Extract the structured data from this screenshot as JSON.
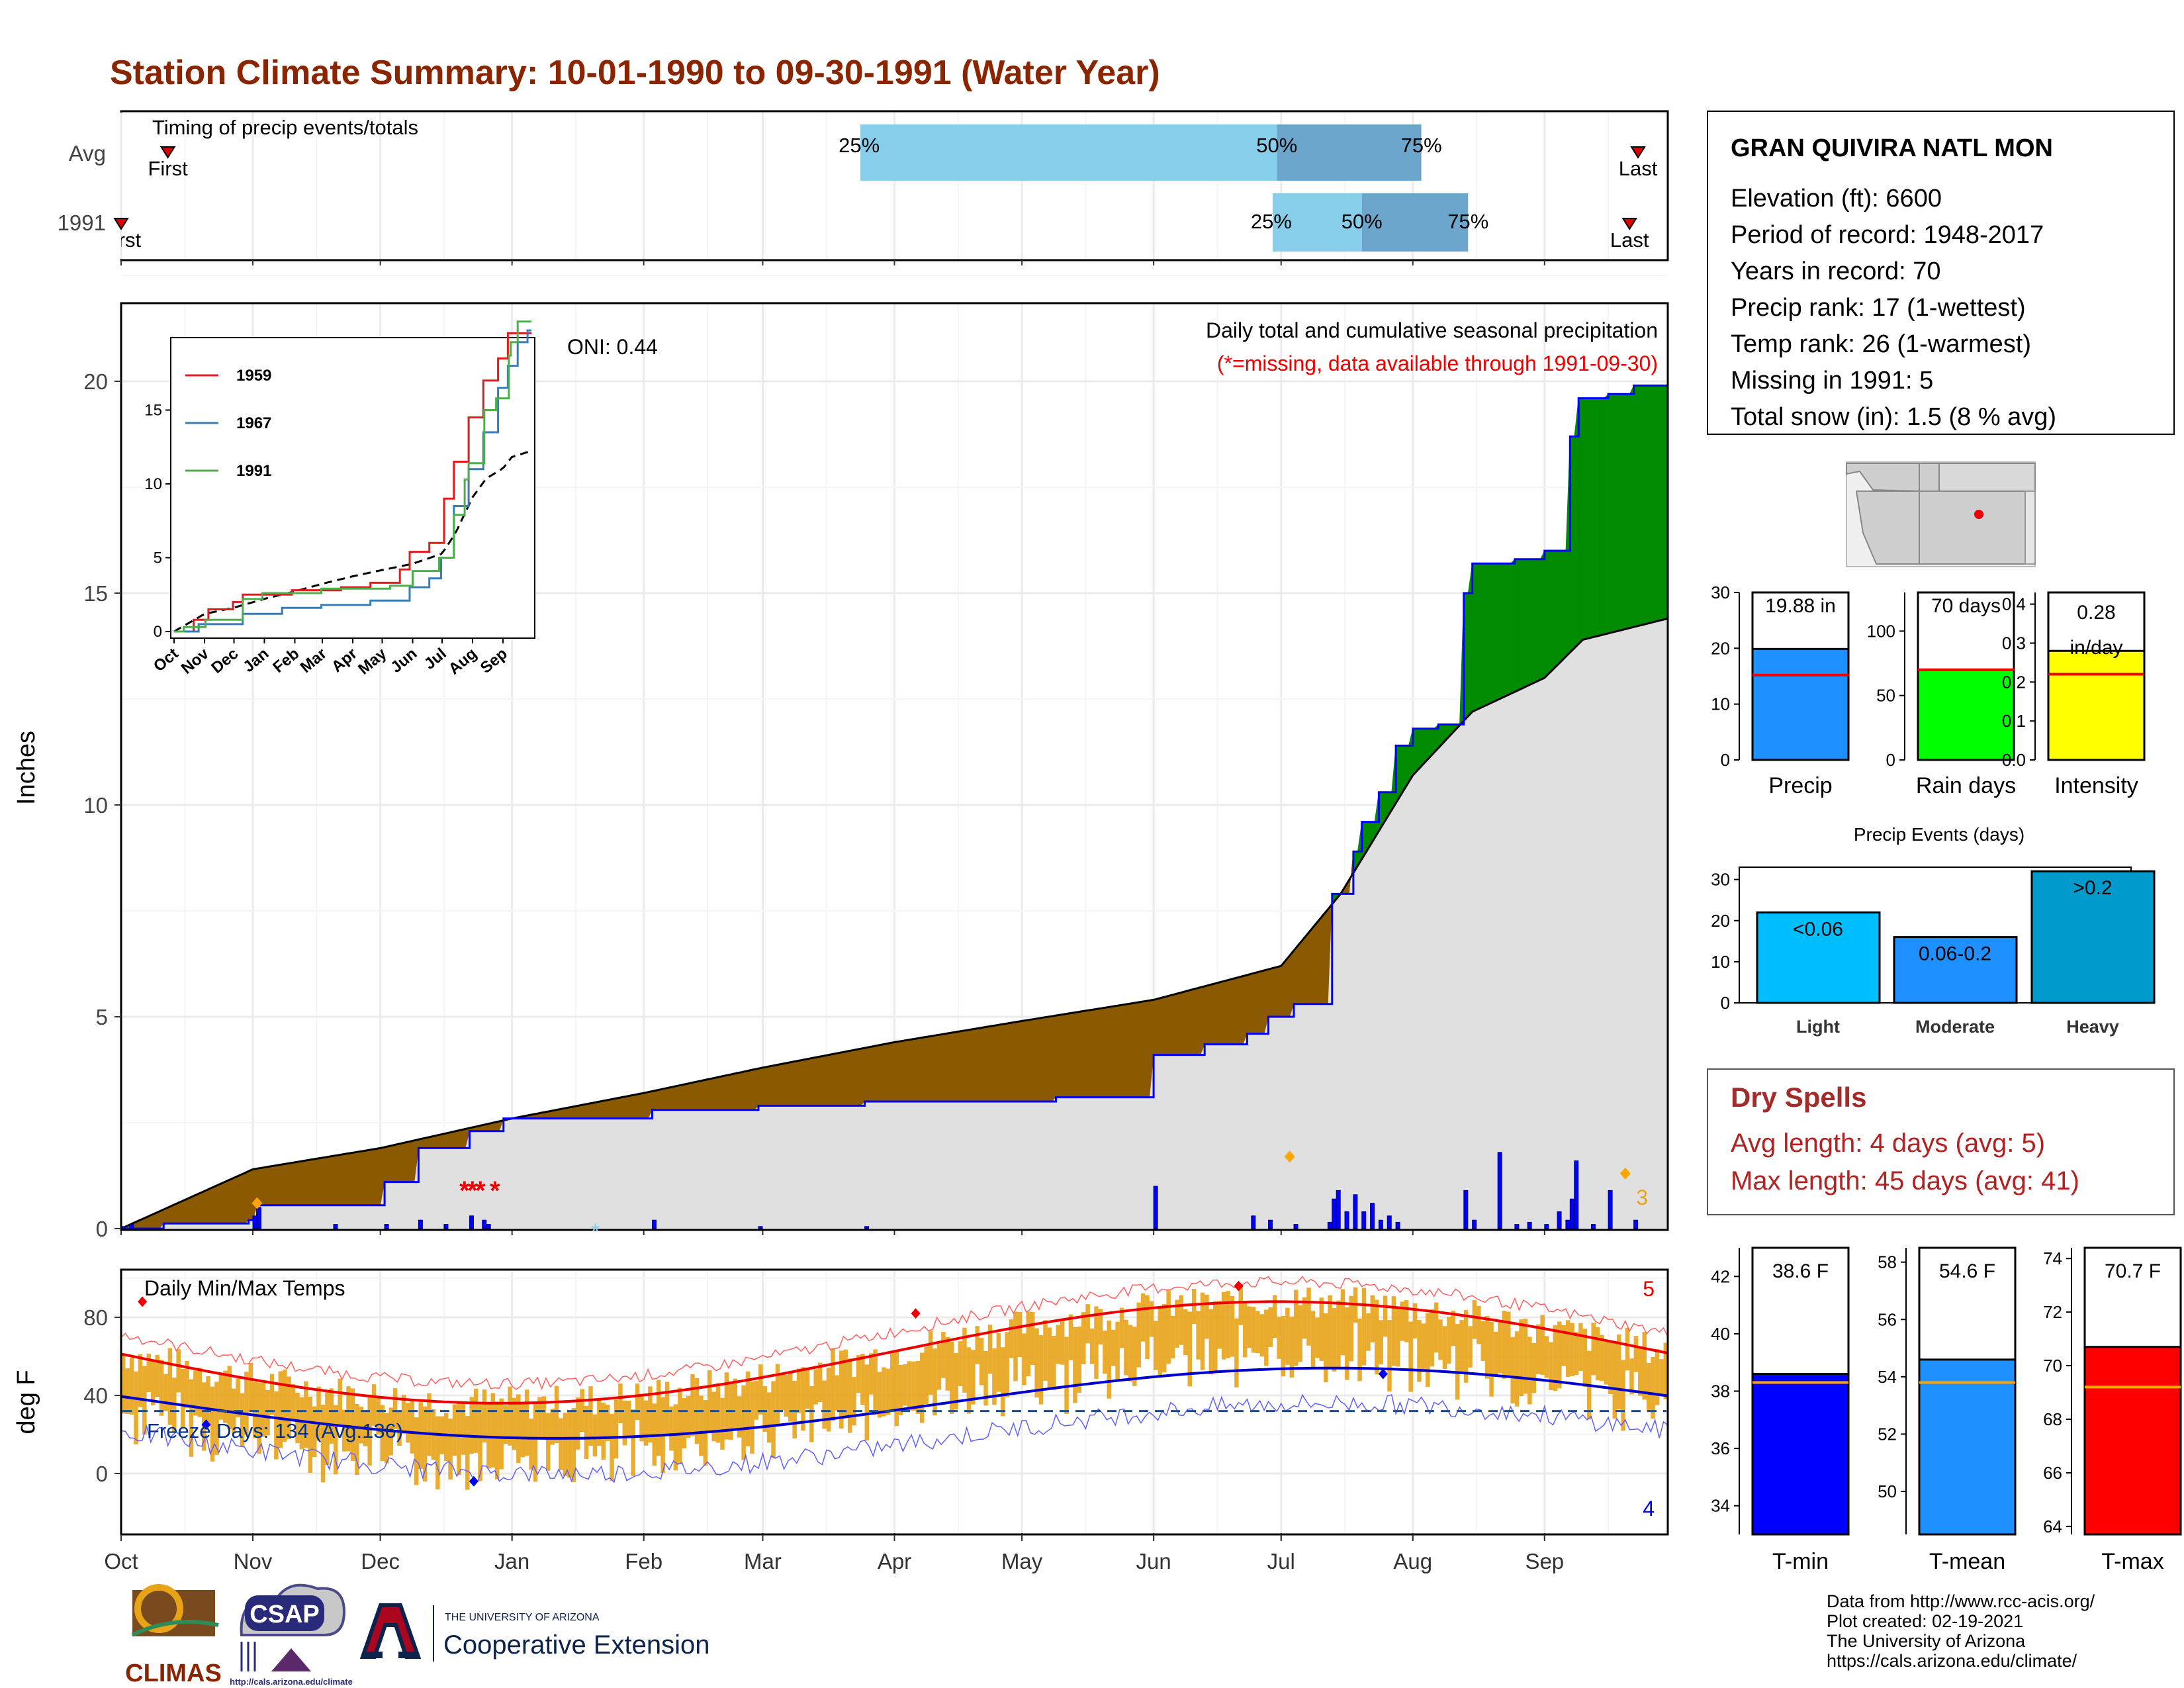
{
  "title": "Station Climate Summary: 10-01-1990 to 09-30-1991 (Water Year)",
  "months": [
    "Oct",
    "Nov",
    "Dec",
    "Jan",
    "Feb",
    "Mar",
    "Apr",
    "May",
    "Jun",
    "Jul",
    "Aug",
    "Sep"
  ],
  "timing": {
    "title": "Timing of precip events/totals",
    "rows": [
      {
        "label": "Avg",
        "first_label": "First",
        "last_label": "Last",
        "first_day": 11,
        "last_day": 357,
        "p25_day": 174,
        "p50_day": 272,
        "p75_day": 306,
        "p25_label": "25%",
        "p50_label": "50%",
        "p75_label": "75%"
      },
      {
        "label": "1991",
        "first_label": "First",
        "last_label": "Last",
        "first_day": 0,
        "last_day": 355,
        "p25_day": 271,
        "p50_day": 292,
        "p75_day": 317,
        "p25_label": "25%",
        "p50_label": "50%",
        "p75_label": "75%"
      }
    ]
  },
  "station": {
    "name": "GRAN QUIVIRA NATL MON",
    "lines": [
      "Elevation (ft): 6600",
      "Period of record: 1948-2017",
      "Years in record: 70",
      "Precip rank: 17 (1-wettest)",
      "Temp rank: 26 (1-warmest)",
      "Missing in 1991: 5",
      "Total snow (in): 1.5 (8 % avg)"
    ]
  },
  "precip_panel": {
    "ylabel": "Inches",
    "note1": "Daily total and cumulative seasonal precipitation",
    "note2": "(*=missing, data available through 1991-09-30)",
    "oni": "ONI: 0.44",
    "corner_count": "3",
    "yticks": [
      "0",
      "5",
      "10",
      "15",
      "20"
    ]
  },
  "chart_data": {
    "type": "area",
    "x": [
      "10-01",
      "11-01",
      "12-01",
      "01-01",
      "02-01",
      "03-01",
      "04-01",
      "05-01",
      "06-01",
      "07-01",
      "07-15",
      "08-01",
      "08-15",
      "09-01",
      "09-10",
      "09-30"
    ],
    "series": [
      {
        "name": "1991",
        "values": [
          0.0,
          0.5,
          1.9,
          2.6,
          2.8,
          3.0,
          3.0,
          3.1,
          4.5,
          5.5,
          8.5,
          11.8,
          15.7,
          16.0,
          19.7,
          19.9
        ]
      },
      {
        "name": "Avg",
        "values": [
          0.0,
          1.4,
          1.9,
          2.6,
          3.2,
          3.8,
          4.4,
          4.9,
          5.4,
          6.2,
          7.9,
          10.7,
          12.2,
          13.0,
          13.9,
          14.4
        ]
      }
    ],
    "ylim": [
      0,
      22
    ]
  },
  "inset": {
    "legend": [
      "1959",
      "1967",
      "1991"
    ],
    "yticks": [
      "0",
      "5",
      "10",
      "15"
    ],
    "xticks": [
      "Oct",
      "Nov",
      "Dec",
      "Jan",
      "Feb",
      "Mar",
      "Apr",
      "May",
      "Jun",
      "Jul",
      "Aug",
      "Sep"
    ]
  },
  "bars": {
    "precip": {
      "label": "Precip",
      "value_text": "19.88 in",
      "value": 19.88,
      "avg": 15.2,
      "yticks": [
        "0",
        "10",
        "20",
        "30"
      ],
      "color": "#1e90ff"
    },
    "rain": {
      "label": "Rain days",
      "value_text": "70 days",
      "value": 70,
      "avg": 70,
      "yticks": [
        "0",
        "50",
        "100"
      ],
      "color": "#00ff00"
    },
    "intensity": {
      "label": "Intensity",
      "value_text": "0.28",
      "value_unit": "in/day",
      "value": 0.28,
      "avg": 0.22,
      "yticks": [
        "0.0",
        "0.1",
        "0.2",
        "0.3",
        "0.4"
      ],
      "color": "#ffff00"
    }
  },
  "events": {
    "title": "Precip Events (days)",
    "cats": [
      "Light",
      "Moderate",
      "Heavy"
    ],
    "labels": [
      "<0.06",
      "0.06-0.2",
      ">0.2"
    ],
    "values": [
      22,
      16,
      32
    ],
    "yticks": [
      "0",
      "10",
      "20",
      "30"
    ]
  },
  "dry": {
    "title": "Dry Spells",
    "line1": "Avg length: 4 days (avg: 5)",
    "line2": "Max length: 45 days (avg: 41)"
  },
  "temp_panel": {
    "title": "Daily Min/Max Temps",
    "ylabel": "deg F",
    "freeze": "Freeze Days: 134 (Avg:136)",
    "count_top": "5",
    "count_bottom": "4",
    "yticks": [
      "0",
      "40",
      "80"
    ]
  },
  "tbars": {
    "tmin": {
      "label": "T-min",
      "value_text": "38.6 F",
      "value": 38.6,
      "avg": 38.3,
      "ymin": 33,
      "ymax": 43,
      "yticks": [
        "34",
        "36",
        "38",
        "40",
        "42"
      ],
      "color": "#0000ff"
    },
    "tmean": {
      "label": "T-mean",
      "value_text": "54.6 F",
      "value": 54.6,
      "avg": 53.8,
      "ymin": 48.5,
      "ymax": 58.5,
      "yticks": [
        "50",
        "52",
        "54",
        "56",
        "58"
      ],
      "color": "#1e90ff"
    },
    "tmax": {
      "label": "T-max",
      "value_text": "70.7 F",
      "value": 70.7,
      "avg": 69.2,
      "ymin": 63.7,
      "ymax": 74.4,
      "yticks": [
        "64",
        "66",
        "68",
        "70",
        "72",
        "74"
      ],
      "color": "#ff0000"
    }
  },
  "footer": {
    "lines": [
      "Data from http://www.rcc-acis.org/",
      "Plot created: 02-19-2021",
      "The University of Arizona",
      "https://cals.arizona.edu/climate/"
    ],
    "climas": "CLIMAS",
    "csap": "CSAP",
    "csap_url": "http://cals.arizona.edu/climate",
    "ua_small": "THE UNIVERSITY OF ARIZONA",
    "ua_big": "Cooperative Extension"
  },
  "colors": {
    "title": "#8b2500",
    "avg_fill": "#8b5a00",
    "green": "#008b00",
    "blue_line": "#0000ff",
    "grey": "#e0e0e0",
    "dry": "#a52a2a",
    "orange": "#e8a317"
  }
}
